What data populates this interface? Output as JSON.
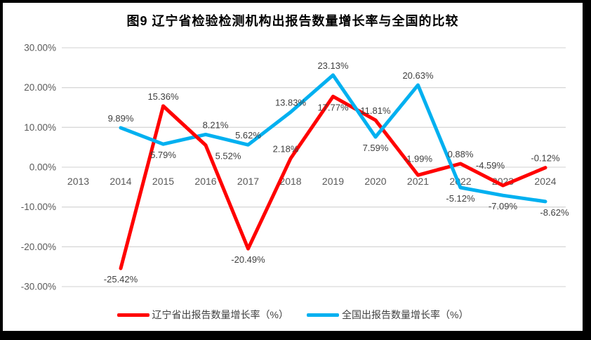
{
  "frame": {
    "border_color": "#000000",
    "background": "#ffffff"
  },
  "chart_data": {
    "type": "line",
    "title": "图9  辽宁省检验检测机构出报告数量增长率与全国的比较",
    "categories": [
      "2013",
      "2014",
      "2015",
      "2016",
      "2017",
      "2018",
      "2019",
      "2020",
      "2021",
      "2022",
      "2023",
      "2024"
    ],
    "xlabel": "",
    "ylabel": "",
    "ylim": [
      -30,
      30
    ],
    "yticks": [
      30,
      20,
      10,
      0,
      -10,
      -20,
      -30
    ],
    "ytick_labels": [
      "30.00%",
      "20.00%",
      "10.00%",
      "0.00%",
      "-10.00%",
      "-20.00%",
      "-30.00%"
    ],
    "grid": true,
    "legend_position": "bottom",
    "colors": {
      "grid": "#d9d9d9",
      "tick_text": "#595959",
      "data_label_text": "#404040"
    },
    "series": [
      {
        "name": "辽宁省出报告数量增长率（%）",
        "color": "#FF0000",
        "values": [
          null,
          -25.42,
          15.36,
          5.52,
          -20.49,
          2.18,
          17.77,
          11.81,
          -1.99,
          0.88,
          -4.59,
          -0.12
        ],
        "labels": [
          null,
          "-25.42%",
          "15.36%",
          "5.52%",
          "-20.49%",
          "2.18%",
          "17.77%",
          "11.81%",
          "-1.99%",
          "0.88%",
          "-4.59%",
          "-0.12%"
        ],
        "label_pos": [
          null,
          "below",
          "above",
          "below",
          "below",
          "above",
          "below",
          "above",
          "above",
          "above",
          "above",
          "above"
        ],
        "label_dx": {
          "3": 32,
          "5": -7,
          "10": -18
        },
        "label_dy": {
          "8": -10,
          "10": -15
        }
      },
      {
        "name": "全国出报告数量增长率（%）",
        "color": "#00B0F0",
        "values": [
          null,
          9.89,
          5.79,
          8.21,
          5.62,
          13.83,
          23.13,
          7.59,
          20.63,
          -5.12,
          -7.09,
          -8.62
        ],
        "labels": [
          null,
          "9.89%",
          "5.79%",
          "8.21%",
          "5.62%",
          "13.83%",
          "23.13%",
          "7.59%",
          "20.63%",
          "-5.12%",
          "-7.09%",
          "-8.62%"
        ],
        "label_pos": [
          null,
          "above",
          "below",
          "above",
          "above",
          "above",
          "above",
          "below",
          "above",
          "below",
          "below",
          "below"
        ],
        "label_dx": {
          "3": 14,
          "11": 13
        },
        "label_dy": {}
      }
    ],
    "overlay_segments": [
      {
        "series": 0,
        "from": 2,
        "to": 3
      }
    ]
  },
  "legend": {
    "items": [
      {
        "label": "辽宁省出报告数量增长率（%）",
        "color": "#FF0000"
      },
      {
        "label": "全国出报告数量增长率（%）",
        "color": "#00B0F0"
      }
    ]
  }
}
